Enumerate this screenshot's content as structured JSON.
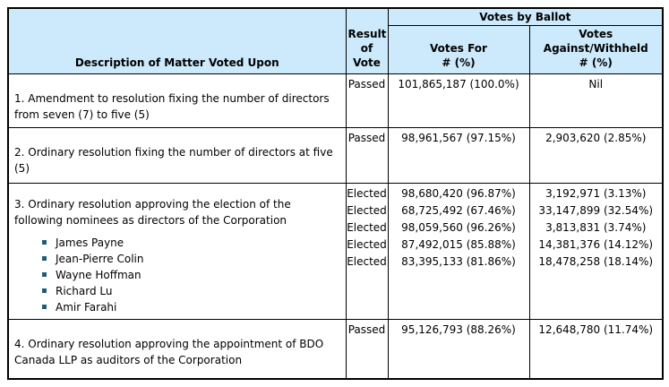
{
  "colors": {
    "header_bg": "#CCEAFB",
    "border": "#000000",
    "text": "#000000",
    "bullet": "#1D5D77"
  },
  "header": {
    "description": "Description of Matter Voted Upon",
    "result_of_vote": "Result\nof\nVote",
    "votes_by_ballot": "Votes by Ballot",
    "votes_for": "Votes For\n# (%)",
    "votes_against_withheld": "Votes\nAgainst/Withheld\n# (%)"
  },
  "rows": [
    {
      "description": "1. Amendment to resolution fixing the number of directors from seven (7) to five (5)",
      "results": [
        "Passed"
      ],
      "votes_for": [
        "101,865,187 (100.0%)"
      ],
      "votes_against": [
        "Nil"
      ]
    },
    {
      "description": "2. Ordinary resolution fixing the number of directors at five (5)",
      "results": [
        "Passed"
      ],
      "votes_for": [
        "98,961,567 (97.15%)"
      ],
      "votes_against": [
        "2,903,620 (2.85%)"
      ]
    },
    {
      "description": "3. Ordinary resolution approving the election of the following nominees as directors of the Corporation",
      "nominees": [
        "James Payne",
        "Jean-Pierre Colin",
        "Wayne Hoffman",
        "Richard Lu",
        "Amir Farahi"
      ],
      "results": [
        "Elected",
        "Elected",
        "Elected",
        "Elected",
        "Elected"
      ],
      "votes_for": [
        "98,680,420 (96.87%)",
        "68,725,492 (67.46%)",
        "98,059,560 (96.26%)",
        "87,492,015 (85.88%)",
        "83,395,133 (81.86%)"
      ],
      "votes_against": [
        "3,192,971 (3.13%)",
        "33,147,899 (32.54%)",
        "3,813,831 (3.74%)",
        "14,381,376 (14.12%)",
        "18,478,258 (18.14%)"
      ]
    },
    {
      "description": "4. Ordinary resolution approving the appointment of BDO Canada LLP as auditors of the Corporation",
      "results": [
        "Passed"
      ],
      "votes_for": [
        "95,126,793 (88.26%)"
      ],
      "votes_against": [
        "12,648,780 (11.74%)"
      ]
    }
  ]
}
